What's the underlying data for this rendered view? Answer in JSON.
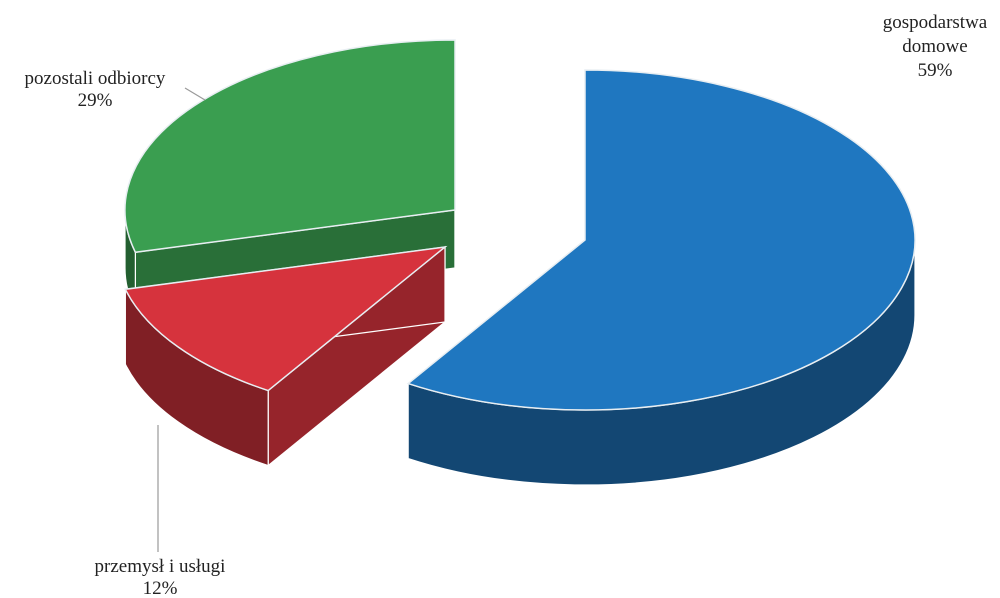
{
  "chart_data": {
    "type": "pie",
    "style": "3d-exploded",
    "title": "",
    "legend": "none",
    "slices": [
      {
        "name": "gospodarstwa domowe",
        "value": 59,
        "label_lines": [
          "gospodarstwa",
          "domowe"
        ],
        "value_label": "59%",
        "color": "#1f77c0"
      },
      {
        "name": "przemysł i usługi",
        "value": 12,
        "label_lines": [
          "przemysł i usługi"
        ],
        "value_label": "12%",
        "color": "#d6333d"
      },
      {
        "name": "pozostali odbiorcy",
        "value": 29,
        "label_lines": [
          "pozostali odbiorcy"
        ],
        "value_label": "29%",
        "color": "#3a9e50"
      }
    ]
  }
}
